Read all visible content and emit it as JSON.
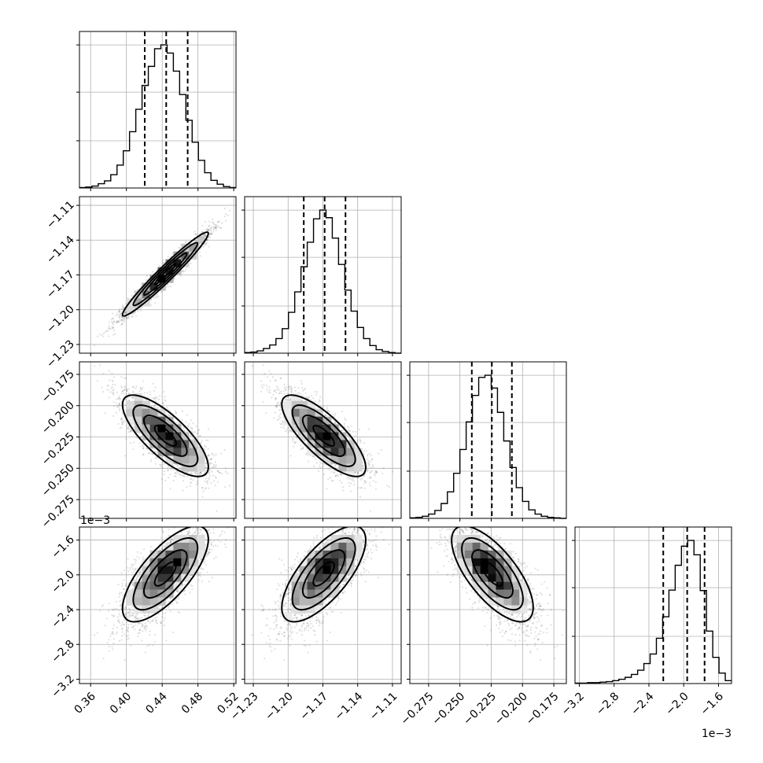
{
  "chart_data": {
    "type": "corner",
    "grid": true,
    "legend": "none",
    "colors": {
      "line": "#000000",
      "grid": "#b0b0b0",
      "background": "#ffffff"
    },
    "parameters": [
      {
        "ticks": [
          0.36,
          0.4,
          0.44,
          0.48,
          0.52
        ],
        "tick_labels": [
          "0.36",
          "0.40",
          "0.44",
          "0.48",
          "0.52"
        ],
        "range": [
          0.3475,
          0.5225
        ],
        "quantiles": [
          0.4205,
          0.4445,
          0.4685
        ],
        "hist_counts": [
          1,
          2,
          4,
          9,
          15,
          28,
          48,
          78,
          118,
          165,
          215,
          255,
          292,
          300,
          283,
          245,
          196,
          142,
          96,
          58,
          32,
          16,
          8,
          3,
          1
        ]
      },
      {
        "ticks": [
          -1.23,
          -1.2,
          -1.17,
          -1.14,
          -1.11
        ],
        "tick_labels": [
          "−1.23",
          "−1.20",
          "−1.17",
          "−1.14",
          "−1.11"
        ],
        "range": [
          -1.2375,
          -1.1025
        ],
        "quantiles": [
          -1.1865,
          -1.1685,
          -1.1505
        ],
        "hist_counts": [
          1,
          2,
          4,
          8,
          14,
          25,
          42,
          70,
          105,
          148,
          190,
          230,
          245,
          232,
          197,
          152,
          108,
          72,
          44,
          25,
          13,
          6,
          3,
          1,
          0
        ]
      },
      {
        "ticks": [
          -0.275,
          -0.25,
          -0.225,
          -0.2,
          -0.175
        ],
        "tick_labels": [
          "−0.275",
          "−0.250",
          "−0.225",
          "−0.200",
          "−0.175"
        ],
        "range": [
          -0.29,
          -0.165
        ],
        "quantiles": [
          -0.2405,
          -0.2245,
          -0.2085
        ],
        "hist_counts": [
          1,
          2,
          4,
          8,
          15,
          28,
          50,
          85,
          130,
          182,
          232,
          266,
          270,
          246,
          200,
          146,
          96,
          58,
          32,
          16,
          8,
          4,
          2,
          1,
          0
        ]
      },
      {
        "ticks": [
          -3.2,
          -2.8,
          -2.4,
          -2.0,
          -1.6
        ],
        "tick_labels": [
          "−3.2",
          "−2.8",
          "−2.4",
          "−2.0",
          "−1.6"
        ],
        "range": [
          -3.25,
          -1.45
        ],
        "scale_label": "1e−3",
        "quantiles": [
          -2.235,
          -1.96,
          -1.76
        ],
        "hist_counts": [
          1,
          1,
          2,
          2,
          3,
          4,
          6,
          9,
          13,
          19,
          28,
          42,
          62,
          95,
          140,
          196,
          248,
          288,
          300,
          270,
          195,
          110,
          55,
          22,
          6
        ]
      }
    ],
    "correlations": [
      [
        1.0,
        0.97,
        -0.76,
        0.72
      ],
      [
        0.97,
        1.0,
        -0.78,
        0.7
      ],
      [
        -0.76,
        -0.78,
        1.0,
        -0.7
      ],
      [
        0.72,
        0.7,
        -0.7,
        1.0
      ]
    ],
    "skew_param4": -0.8
  }
}
